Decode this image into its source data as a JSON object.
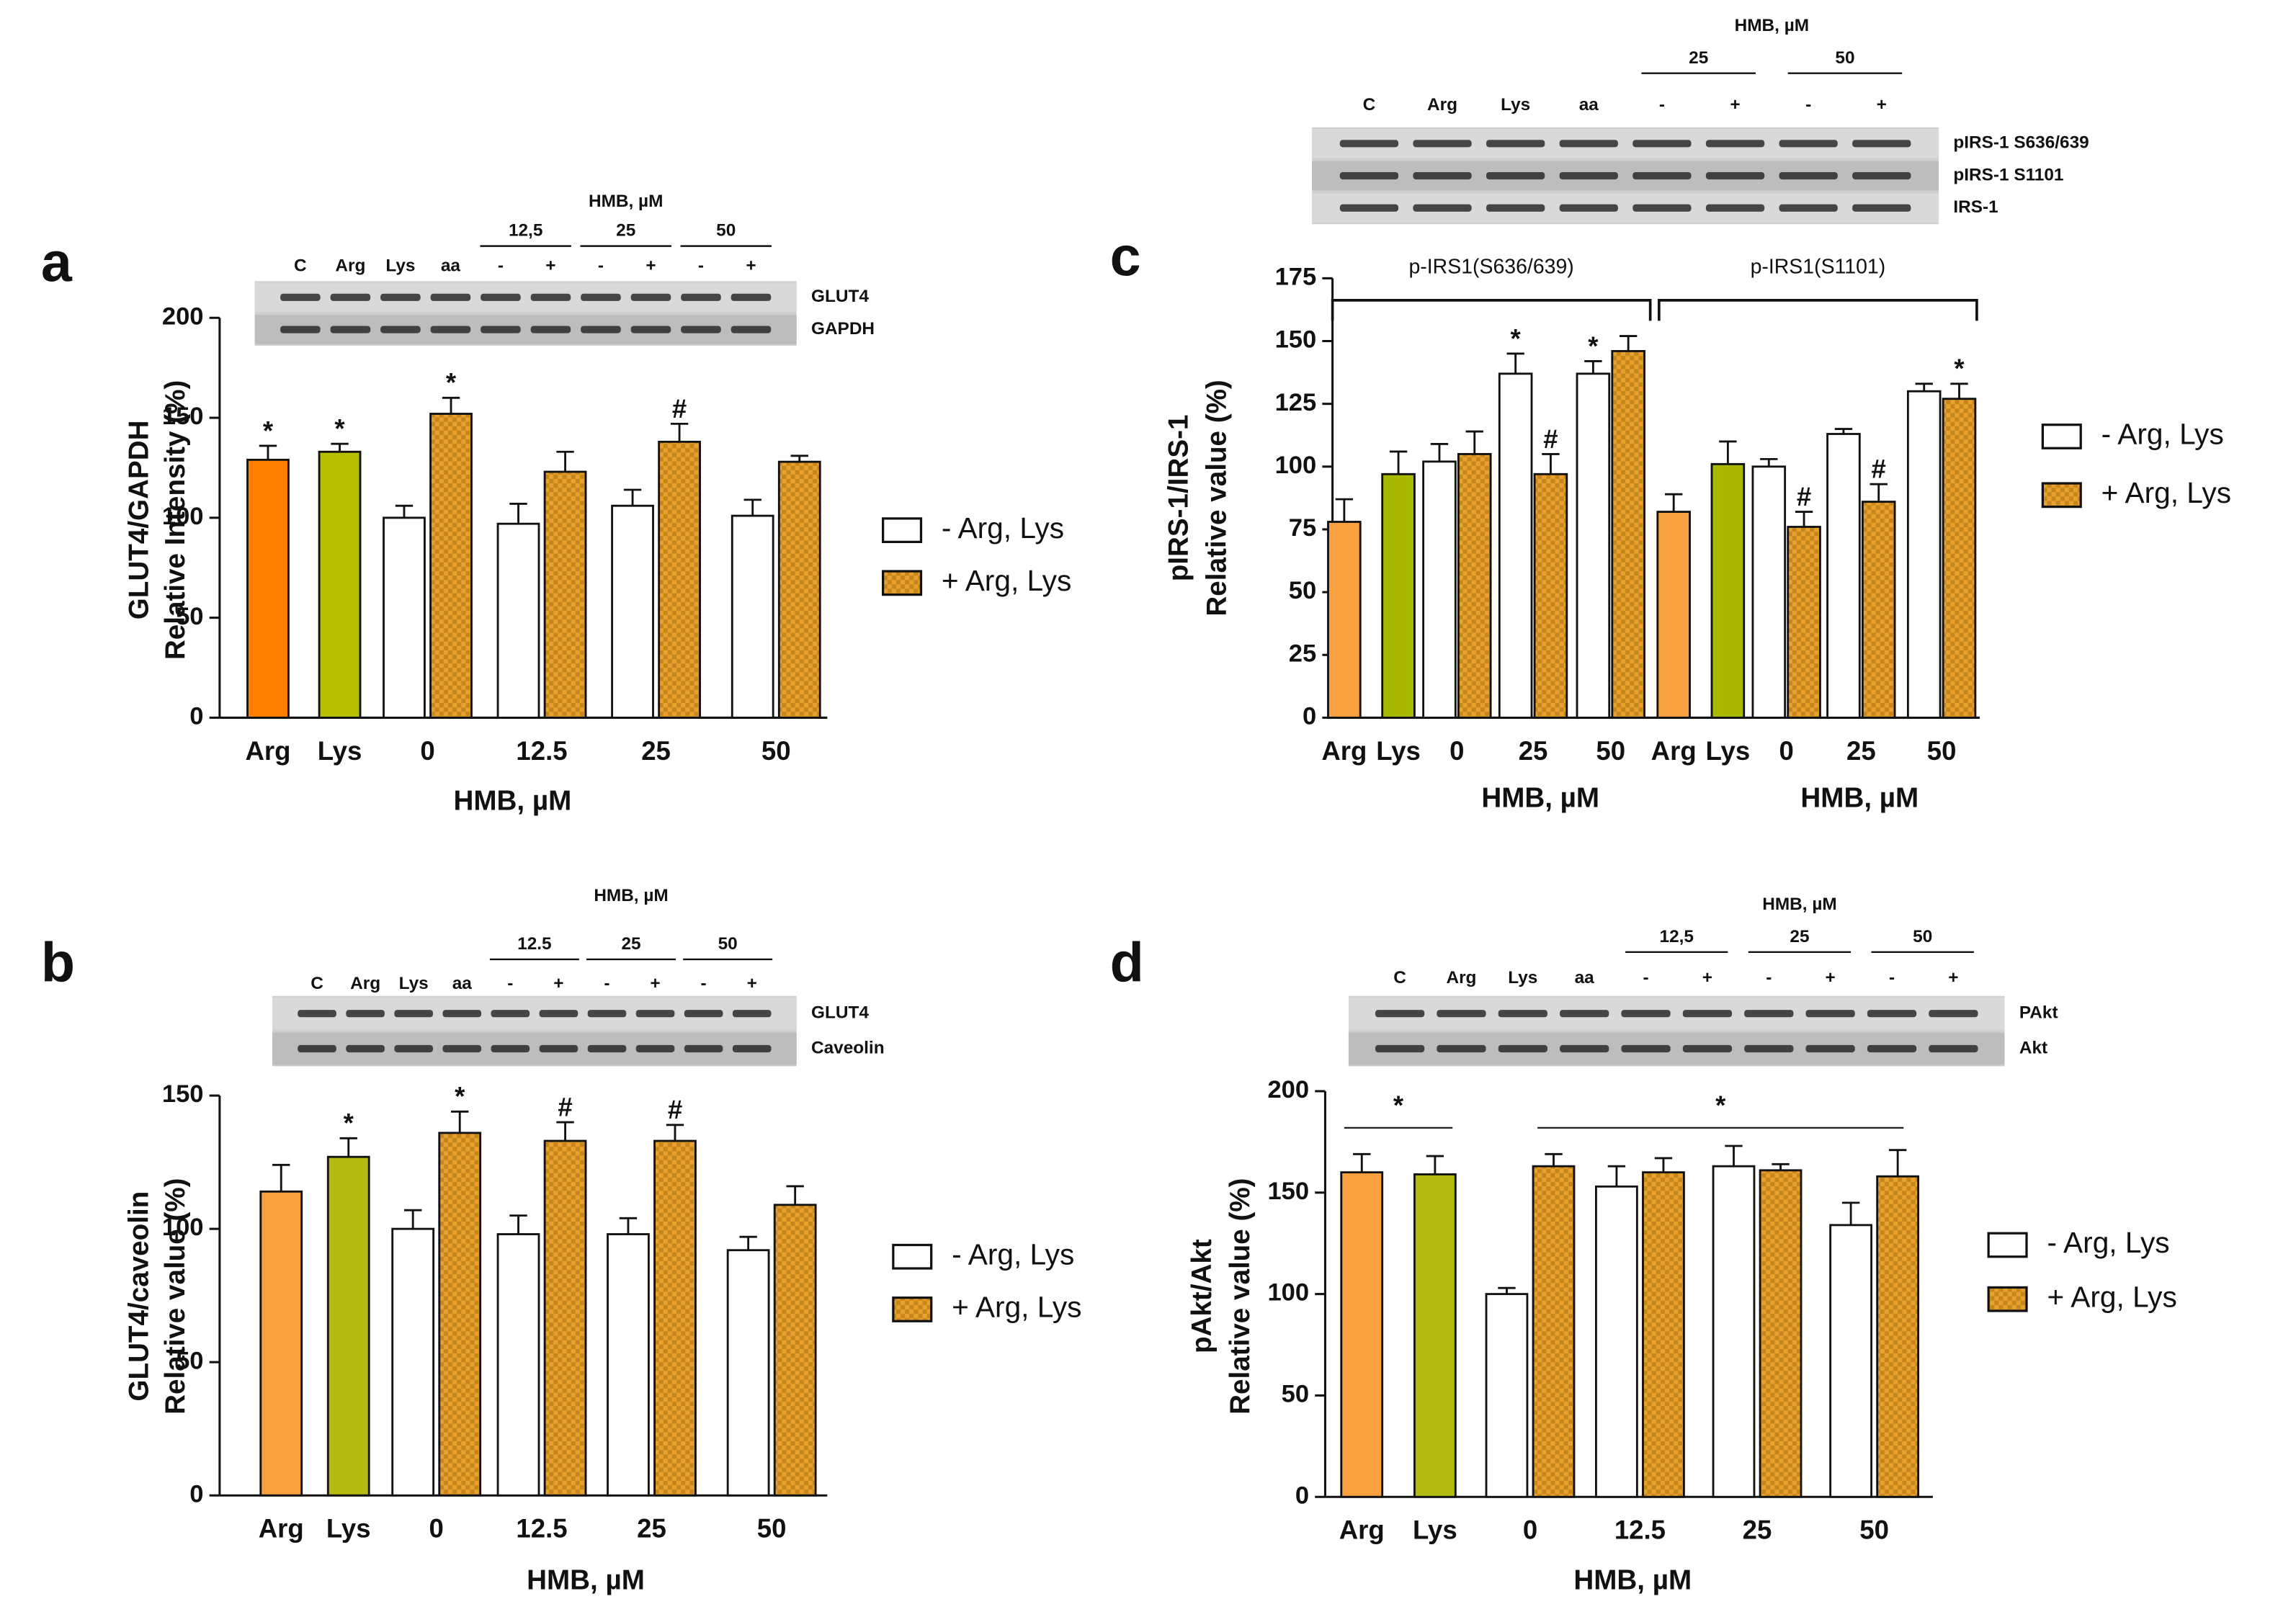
{
  "chart_data": [
    {
      "type": "bar",
      "panel": "a",
      "ylabel": [
        "GLUT4/GAPDH",
        "Relative Intensity (%)"
      ],
      "ylim": [
        0,
        200
      ],
      "yticks": [
        0,
        50,
        100,
        150,
        200
      ],
      "blot": {
        "title": "HMB, µM",
        "groups": [
          "12,5",
          "25",
          "50"
        ],
        "lanes": [
          "C",
          "Arg",
          "Lys",
          "aa",
          "-",
          "+",
          "-",
          "+",
          "-",
          "+"
        ],
        "bands": [
          "GLUT4",
          "GAPDH"
        ]
      },
      "series": [
        {
          "name": "- Arg, Lys",
          "color": "#ffffff"
        },
        {
          "name": "+ Arg, Lys",
          "color": "#eaa02c"
        }
      ],
      "sections": [
        {
          "xlabel": "HMB, µM",
          "controls": {
            "categories": [
              "Arg",
              "Lys"
            ],
            "values": [
              129,
              133
            ],
            "errors": [
              7,
              4
            ],
            "colors": [
              "#ff8000",
              "#b8bf00"
            ],
            "annotations": [
              "*",
              "*"
            ]
          },
          "categories": [
            "0",
            "12.5",
            "25",
            "50"
          ],
          "groups": [
            {
              "values": [
                100,
                97,
                106,
                101
              ],
              "errors": [
                6,
                10,
                8,
                8
              ],
              "annotations": [
                null,
                null,
                null,
                null
              ]
            },
            {
              "values": [
                152,
                123,
                138,
                128
              ],
              "errors": [
                8,
                10,
                9,
                3
              ],
              "annotations": [
                "*",
                null,
                "#",
                null
              ]
            }
          ]
        }
      ]
    },
    {
      "type": "bar",
      "panel": "b",
      "ylabel": [
        "GLUT4/caveolin",
        "Relative value (%)"
      ],
      "ylim": [
        0,
        150
      ],
      "yticks": [
        0,
        50,
        100,
        150
      ],
      "blot": {
        "title": "HMB, µM",
        "groups": [
          "12.5",
          "25",
          "50"
        ],
        "lanes": [
          "C",
          "Arg",
          "Lys",
          "aa",
          "-",
          "+",
          "-",
          "+",
          "-",
          "+"
        ],
        "bands": [
          "GLUT4",
          "Caveolin"
        ]
      },
      "series": [
        {
          "name": "- Arg, Lys",
          "color": "#ffffff"
        },
        {
          "name": "+ Arg, Lys",
          "color": "#eaa02c"
        }
      ],
      "sections": [
        {
          "xlabel": "HMB, µM",
          "controls": {
            "categories": [
              "Arg",
              "Lys"
            ],
            "values": [
              114,
              127
            ],
            "errors": [
              10,
              7
            ],
            "colors": [
              "#f9a040",
              "#b3bb10"
            ],
            "annotations": [
              null,
              "*"
            ]
          },
          "categories": [
            "0",
            "12.5",
            "25",
            "50"
          ],
          "groups": [
            {
              "values": [
                100,
                98,
                98,
                92
              ],
              "errors": [
                7,
                7,
                6,
                5
              ],
              "annotations": [
                null,
                null,
                null,
                null
              ]
            },
            {
              "values": [
                136,
                133,
                133,
                109
              ],
              "errors": [
                8,
                7,
                6,
                7
              ],
              "annotations": [
                "*",
                "#",
                "#",
                null
              ]
            }
          ]
        }
      ]
    },
    {
      "type": "bar",
      "panel": "c",
      "ylabel": [
        "pIRS-1/IRS-1",
        "Relative value (%)"
      ],
      "ylim": [
        0,
        175
      ],
      "yticks": [
        0,
        25,
        50,
        75,
        100,
        125,
        150,
        175
      ],
      "blot": {
        "title": "HMB, µM",
        "groups": [
          "25",
          "50"
        ],
        "lanes": [
          "C",
          "Arg",
          "Lys",
          "aa",
          "-",
          "+",
          "-",
          "+"
        ],
        "bands": [
          "pIRS-1 S636/639",
          "pIRS-1 S1101",
          "IRS-1"
        ]
      },
      "series": [
        {
          "name": "- Arg, Lys",
          "color": "#ffffff"
        },
        {
          "name": "+ Arg, Lys",
          "color": "#eaa02c"
        }
      ],
      "sections": [
        {
          "label": "p-IRS1(S636/639)",
          "xlabel": "HMB, µM",
          "controls": {
            "categories": [
              "Arg",
              "Lys"
            ],
            "values": [
              78,
              97
            ],
            "errors": [
              9,
              9
            ],
            "colors": [
              "#f9a040",
              "#a8b800"
            ],
            "annotations": [
              null,
              null
            ]
          },
          "categories": [
            "0",
            "25",
            "50"
          ],
          "groups": [
            {
              "values": [
                102,
                137,
                137
              ],
              "errors": [
                7,
                8,
                5
              ],
              "annotations": [
                null,
                "*",
                "*"
              ]
            },
            {
              "values": [
                105,
                97,
                146
              ],
              "errors": [
                9,
                8,
                6
              ],
              "annotations": [
                null,
                "#",
                null
              ]
            }
          ]
        },
        {
          "label": "p-IRS1(S1101)",
          "xlabel": "HMB, µM",
          "controls": {
            "categories": [
              "Arg",
              "Lys"
            ],
            "values": [
              82,
              101
            ],
            "errors": [
              7,
              9
            ],
            "colors": [
              "#f9a040",
              "#a8b800"
            ],
            "annotations": [
              null,
              null
            ]
          },
          "categories": [
            "0",
            "25",
            "50"
          ],
          "groups": [
            {
              "values": [
                100,
                113,
                130
              ],
              "errors": [
                3,
                2,
                3
              ],
              "annotations": [
                null,
                null,
                null
              ]
            },
            {
              "values": [
                76,
                86,
                127
              ],
              "errors": [
                6,
                7,
                6
              ],
              "annotations": [
                "#",
                "#",
                "*"
              ]
            }
          ]
        }
      ]
    },
    {
      "type": "bar",
      "panel": "d",
      "ylabel": [
        "pAkt/Akt",
        "Relative value (%)"
      ],
      "ylim": [
        0,
        200
      ],
      "yticks": [
        0,
        50,
        100,
        150,
        200
      ],
      "blot": {
        "title": "HMB, µM",
        "groups": [
          "12,5",
          "25",
          "50"
        ],
        "lanes": [
          "C",
          "Arg",
          "Lys",
          "aa",
          "-",
          "+",
          "-",
          "+",
          "-",
          "+"
        ],
        "bands": [
          "PAkt",
          "Akt"
        ]
      },
      "series": [
        {
          "name": "- Arg, Lys",
          "color": "#ffffff"
        },
        {
          "name": "+ Arg, Lys",
          "color": "#eaa02c"
        }
      ],
      "significance": [
        "*",
        "*"
      ],
      "sections": [
        {
          "xlabel": "HMB, µM",
          "controls": {
            "categories": [
              "Arg",
              "Lys"
            ],
            "values": [
              160,
              159
            ],
            "errors": [
              9,
              9
            ],
            "colors": [
              "#f9a040",
              "#b3bb10"
            ],
            "annotations": [
              null,
              null
            ]
          },
          "categories": [
            "0",
            "12.5",
            "25",
            "50"
          ],
          "groups": [
            {
              "values": [
                100,
                153,
                163,
                134
              ],
              "errors": [
                3,
                10,
                10,
                11
              ],
              "annotations": [
                null,
                null,
                null,
                null
              ]
            },
            {
              "values": [
                163,
                160,
                161,
                158
              ],
              "errors": [
                6,
                7,
                3,
                13
              ],
              "annotations": [
                null,
                null,
                null,
                null
              ]
            }
          ]
        }
      ]
    }
  ]
}
